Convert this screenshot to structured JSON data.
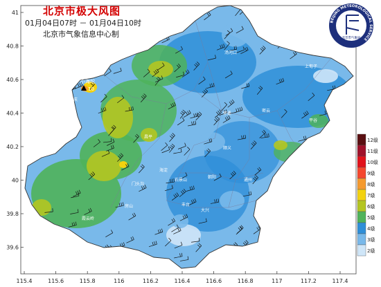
{
  "header": {
    "title": "北京市极大风图",
    "time_range": "01月04日07时 － 01月04日10时",
    "source": "北京市气象信息中心制"
  },
  "logo": {
    "ring_text": "BEIJING METEOROLOGICAL SERVICE",
    "inner_text": "北京市气象局"
  },
  "axes": {
    "x_ticks": [
      "115.4",
      "115.6",
      "115.8",
      "116",
      "116.2",
      "116.4",
      "116.6",
      "116.8",
      "117",
      "117.2",
      "117.4"
    ],
    "y_ticks": [
      "41",
      "40.8",
      "40.6",
      "40.4",
      "40.2",
      "40",
      "39.8",
      "39.6"
    ]
  },
  "legend": {
    "levels": [
      {
        "label": "12级",
        "color": "#5a0f12"
      },
      {
        "label": "11级",
        "color": "#a0112a"
      },
      {
        "label": "10级",
        "color": "#e1111a"
      },
      {
        "label": "9级",
        "color": "#f5472d"
      },
      {
        "label": "8级",
        "color": "#f59a2e"
      },
      {
        "label": "7级",
        "color": "#f3d20f"
      },
      {
        "label": "6级",
        "color": "#b4c521"
      },
      {
        "label": "5级",
        "color": "#4fb35a"
      },
      {
        "label": "4级",
        "color": "#2f8fd8"
      },
      {
        "label": "3级",
        "color": "#79b9ea"
      },
      {
        "label": "2级",
        "color": "#cfe6f8"
      }
    ]
  },
  "stations": {
    "peak_value": "10",
    "peak_station": "小海坨",
    "labels": [
      "延庆",
      "怀柔",
      "密云",
      "平谷",
      "昌平",
      "顺义",
      "门头沟",
      "海淀",
      "朝阳",
      "石景山",
      "丰台",
      "房山",
      "大兴",
      "通州",
      "霞云岭",
      "上甸子",
      "汤河口"
    ]
  }
}
